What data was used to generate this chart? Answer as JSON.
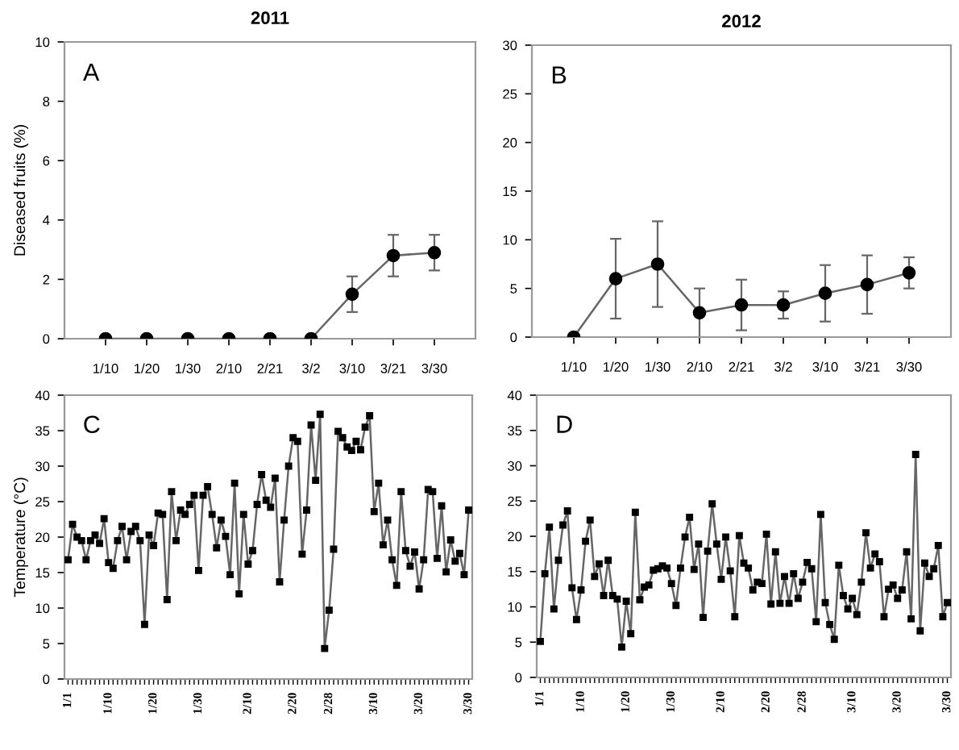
{
  "chart_data": [
    {
      "type": "line",
      "title": "2011",
      "ylabel": "Diseased fruits (%)",
      "annotations": [
        "A"
      ],
      "categories": [
        "1/10",
        "1/20",
        "1/30",
        "2/10",
        "2/21",
        "3/2",
        "3/10",
        "3/21",
        "3/30"
      ],
      "series": [
        {
          "color": "#000000",
          "values": [
            0,
            0,
            0,
            0,
            0,
            0,
            1.5,
            2.8,
            2.9
          ],
          "errors": [
            null,
            null,
            null,
            null,
            null,
            null,
            0.6,
            0.7,
            0.6
          ]
        }
      ],
      "ylim": [
        0,
        10
      ],
      "yticks": [
        0,
        2,
        4,
        6,
        8,
        10
      ],
      "marker": "circle",
      "line_style": "solid",
      "grid": false,
      "legend": false
    },
    {
      "type": "line",
      "title": "2012",
      "annotations": [
        "B"
      ],
      "categories": [
        "1/10",
        "1/20",
        "1/30",
        "2/10",
        "2/21",
        "3/2",
        "3/10",
        "3/21",
        "3/30"
      ],
      "series": [
        {
          "color": "#000000",
          "values": [
            0,
            6.0,
            7.5,
            2.5,
            3.3,
            3.3,
            4.5,
            5.4,
            6.6
          ],
          "errors": [
            null,
            4.1,
            4.4,
            2.5,
            2.6,
            1.4,
            2.9,
            3.0,
            1.6
          ]
        }
      ],
      "ylim": [
        0,
        30
      ],
      "yticks": [
        0,
        5,
        10,
        15,
        20,
        25,
        30
      ],
      "marker": "circle",
      "line_style": "solid",
      "grid": false,
      "legend": false
    },
    {
      "type": "line",
      "ylabel": "Temperature (°C)",
      "annotations": [
        "C"
      ],
      "categories": [
        "1/1",
        null,
        null,
        null,
        null,
        null,
        null,
        null,
        null,
        "1/10",
        null,
        null,
        null,
        null,
        null,
        null,
        null,
        null,
        null,
        "1/20",
        null,
        null,
        null,
        null,
        null,
        null,
        null,
        null,
        null,
        "1/30",
        null,
        null,
        null,
        null,
        null,
        null,
        null,
        null,
        null,
        null,
        "2/10",
        null,
        null,
        null,
        null,
        null,
        null,
        null,
        null,
        null,
        "2/20",
        null,
        null,
        null,
        null,
        null,
        null,
        null,
        "2/28",
        null,
        null,
        null,
        null,
        null,
        null,
        null,
        null,
        null,
        "3/10",
        null,
        null,
        null,
        null,
        null,
        null,
        null,
        null,
        null,
        "3/20",
        null,
        null,
        null,
        null,
        null,
        null,
        null,
        null,
        null,
        null,
        "3/30"
      ],
      "series": [
        {
          "color": "#000000",
          "values": [
            16.8,
            21.8,
            20.0,
            19.5,
            16.8,
            19.5,
            20.3,
            19.1,
            22.6,
            16.4,
            15.6,
            19.5,
            21.5,
            16.8,
            20.8,
            21.5,
            19.5,
            7.7,
            20.3,
            18.8,
            23.4,
            23.2,
            11.2,
            26.4,
            19.5,
            23.8,
            23.2,
            24.6,
            25.9,
            15.3,
            25.9,
            27.1,
            23.2,
            18.5,
            22.4,
            20.1,
            14.7,
            27.6,
            12.0,
            23.2,
            16.2,
            18.1,
            24.6,
            28.8,
            25.2,
            24.2,
            28.3,
            13.7,
            22.4,
            30.0,
            34.0,
            33.5,
            17.6,
            23.8,
            35.8,
            28.0,
            37.3,
            4.3,
            9.7,
            18.3,
            34.9,
            34.0,
            32.7,
            32.2,
            33.5,
            32.3,
            35.5,
            37.1,
            23.6,
            27.6,
            18.9,
            22.4,
            16.8,
            13.2,
            26.4,
            18.1,
            15.9,
            17.9,
            12.7,
            16.8,
            26.7,
            26.4,
            17.0,
            24.4,
            15.1,
            19.6,
            16.6,
            17.7,
            14.7,
            23.8
          ]
        }
      ],
      "ylim": [
        0,
        40
      ],
      "yticks": [
        0,
        5,
        10,
        15,
        20,
        25,
        30,
        35,
        40
      ],
      "marker": "square",
      "line_style": "solid",
      "grid": false,
      "legend": false
    },
    {
      "type": "line",
      "annotations": [
        "D"
      ],
      "categories": [
        "1/1",
        null,
        null,
        null,
        null,
        null,
        null,
        null,
        null,
        "1/10",
        null,
        null,
        null,
        null,
        null,
        null,
        null,
        null,
        null,
        "1/20",
        null,
        null,
        null,
        null,
        null,
        null,
        null,
        null,
        null,
        "1/30",
        null,
        null,
        null,
        null,
        null,
        null,
        null,
        null,
        null,
        null,
        "2/10",
        null,
        null,
        null,
        null,
        null,
        null,
        null,
        null,
        null,
        "2/20",
        null,
        null,
        null,
        null,
        null,
        null,
        null,
        "2/28",
        null,
        null,
        null,
        null,
        null,
        null,
        null,
        null,
        null,
        null,
        "3/10",
        null,
        null,
        null,
        null,
        null,
        null,
        null,
        null,
        null,
        "3/20",
        null,
        null,
        null,
        null,
        null,
        null,
        null,
        null,
        null,
        null,
        "3/30"
      ],
      "series": [
        {
          "color": "#000000",
          "values": [
            5.1,
            14.7,
            21.3,
            9.7,
            16.6,
            21.6,
            23.6,
            12.7,
            8.2,
            12.4,
            19.3,
            22.3,
            14.3,
            16.1,
            11.6,
            16.6,
            11.6,
            11.1,
            4.3,
            10.8,
            6.2,
            23.4,
            11.0,
            12.8,
            13.1,
            15.2,
            15.4,
            15.8,
            15.5,
            13.3,
            10.2,
            15.5,
            19.9,
            22.7,
            15.3,
            18.9,
            8.5,
            17.9,
            24.6,
            18.9,
            13.9,
            19.9,
            15.1,
            8.6,
            20.1,
            16.2,
            15.5,
            12.4,
            13.5,
            13.3,
            20.3,
            10.4,
            17.8,
            10.5,
            14.3,
            10.5,
            14.7,
            11.2,
            13.5,
            16.3,
            15.4,
            7.9,
            23.1,
            10.6,
            7.5,
            5.4,
            15.9,
            11.6,
            9.7,
            11.2,
            8.9,
            13.5,
            20.5,
            15.5,
            17.5,
            16.4,
            8.6,
            12.5,
            13.1,
            11.2,
            12.4,
            17.8,
            8.3,
            31.6,
            6.6,
            16.2,
            14.3,
            15.4,
            18.7,
            8.6,
            10.6
          ]
        }
      ],
      "ylim": [
        0,
        40
      ],
      "yticks": [
        0,
        5,
        10,
        15,
        20,
        25,
        30,
        35,
        40
      ],
      "marker": "square",
      "line_style": "solid",
      "grid": false,
      "legend": false
    }
  ]
}
